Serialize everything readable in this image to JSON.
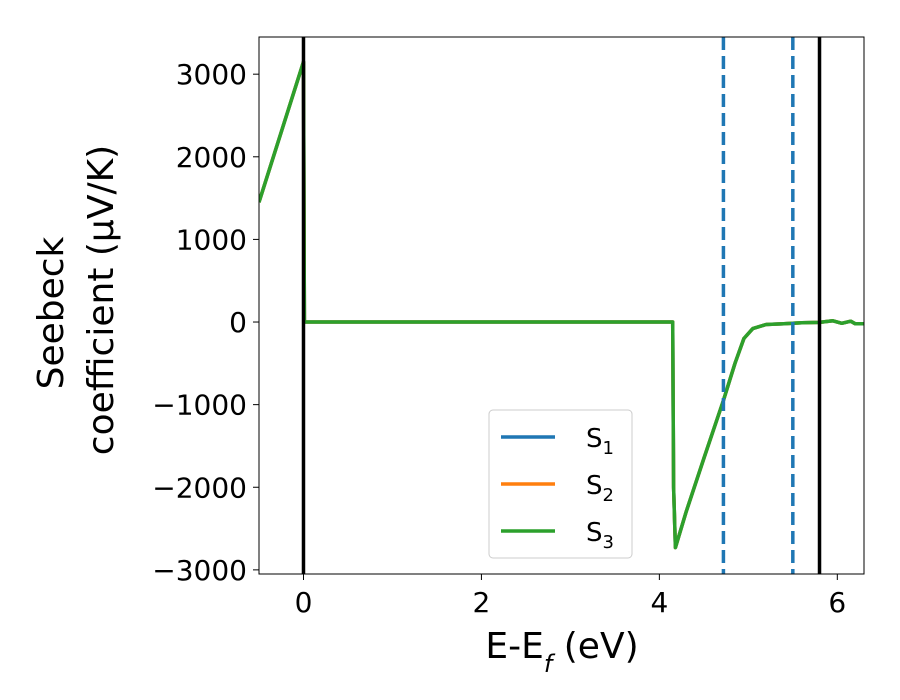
{
  "chart_data": {
    "type": "line",
    "title": "",
    "xlabel": {
      "main": "E-E",
      "sub": "f",
      "rest": " (eV)"
    },
    "ylabel": {
      "line1": "Seebeck",
      "line2": "coefficient  (μV/K)"
    },
    "xlim": [
      -0.5,
      6.3
    ],
    "ylim": [
      -3050,
      3450
    ],
    "xticks": [
      0,
      2,
      4,
      6
    ],
    "xtick_labels": [
      "0",
      "2",
      "4",
      "6"
    ],
    "yticks": [
      -3000,
      -2000,
      -1000,
      0,
      1000,
      2000,
      3000
    ],
    "ytick_labels": [
      "−3000",
      "−2000",
      "−1000",
      "0",
      "1000",
      "2000",
      "3000"
    ],
    "grid": false,
    "legend_position": "lower-center",
    "series": [
      {
        "name": {
          "base": "S",
          "sub": "1"
        },
        "color": "#1f77b4",
        "x": [
          -0.5,
          0.0,
          0.01,
          0.05,
          4.15,
          4.16,
          4.18,
          4.3,
          4.5,
          4.72,
          4.85,
          4.95,
          5.05,
          5.2,
          5.4,
          5.6,
          5.8,
          5.95,
          6.05,
          6.15,
          6.2,
          6.3
        ],
        "y": [
          1450,
          3150,
          0,
          0,
          0,
          -2000,
          -2730,
          -2300,
          -1650,
          -950,
          -500,
          -200,
          -80,
          -30,
          -20,
          -10,
          -5,
          15,
          -15,
          10,
          -20,
          -20
        ]
      },
      {
        "name": {
          "base": "S",
          "sub": "2"
        },
        "color": "#ff7f0e",
        "x": [
          -0.5,
          0.0,
          0.01,
          0.05,
          4.15,
          4.16,
          4.18,
          4.3,
          4.5,
          4.72,
          4.85,
          4.95,
          5.05,
          5.2,
          5.4,
          5.6,
          5.8,
          5.95,
          6.05,
          6.15,
          6.2,
          6.3
        ],
        "y": [
          1450,
          3150,
          0,
          0,
          0,
          -2000,
          -2730,
          -2300,
          -1650,
          -950,
          -500,
          -200,
          -80,
          -30,
          -20,
          -10,
          -5,
          15,
          -15,
          10,
          -20,
          -20
        ]
      },
      {
        "name": {
          "base": "S",
          "sub": "3"
        },
        "color": "#2ca02c",
        "x": [
          -0.5,
          0.0,
          0.01,
          0.05,
          4.15,
          4.16,
          4.18,
          4.3,
          4.5,
          4.72,
          4.85,
          4.95,
          5.05,
          5.2,
          5.4,
          5.6,
          5.8,
          5.95,
          6.05,
          6.15,
          6.2,
          6.3
        ],
        "y": [
          1450,
          3150,
          0,
          0,
          0,
          -2000,
          -2730,
          -2300,
          -1650,
          -950,
          -500,
          -200,
          -80,
          -30,
          -20,
          -10,
          -5,
          15,
          -15,
          10,
          -20,
          -20
        ]
      }
    ],
    "vlines": [
      {
        "x": 0.0,
        "color": "#000000",
        "style": "solid"
      },
      {
        "x": 5.8,
        "color": "#000000",
        "style": "solid"
      },
      {
        "x": 4.72,
        "color": "#1f77b4",
        "style": "dashed"
      },
      {
        "x": 5.5,
        "color": "#1f77b4",
        "style": "dashed"
      }
    ]
  }
}
